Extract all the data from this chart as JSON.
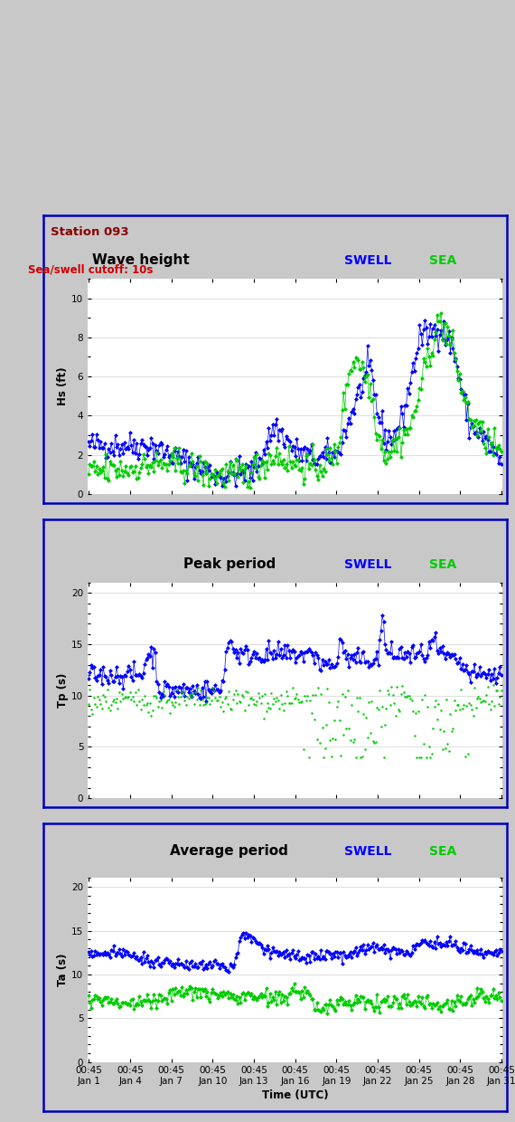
{
  "title1": "Wave height",
  "title2": "Peak period",
  "title3": "Average period",
  "station_text": "Station 093",
  "cutoff_text": "Sea/swell cutoff: 10s",
  "ylabel1": "Hs (ft)",
  "ylabel2": "Tp (s)",
  "ylabel3": "Ta (s)",
  "xlabel": "Time (UTC)",
  "swell_color": "#0000ff",
  "sea_color": "#00cc00",
  "panel_bg": "#c8c8c8",
  "plot_bg": "#ffffff",
  "border_color": "#0000bb",
  "station_color": "#8b0000",
  "cutoff_color": "#cc0000",
  "ylim1": [
    0,
    11
  ],
  "ylim2": [
    0,
    21
  ],
  "ylim3": [
    0,
    21
  ],
  "yticks1": [
    0,
    2,
    4,
    6,
    8,
    10
  ],
  "yticks2": [
    0,
    5,
    10,
    15,
    20
  ],
  "yticks3": [
    0,
    5,
    10,
    15,
    20
  ],
  "n_points": 310,
  "seed": 42
}
